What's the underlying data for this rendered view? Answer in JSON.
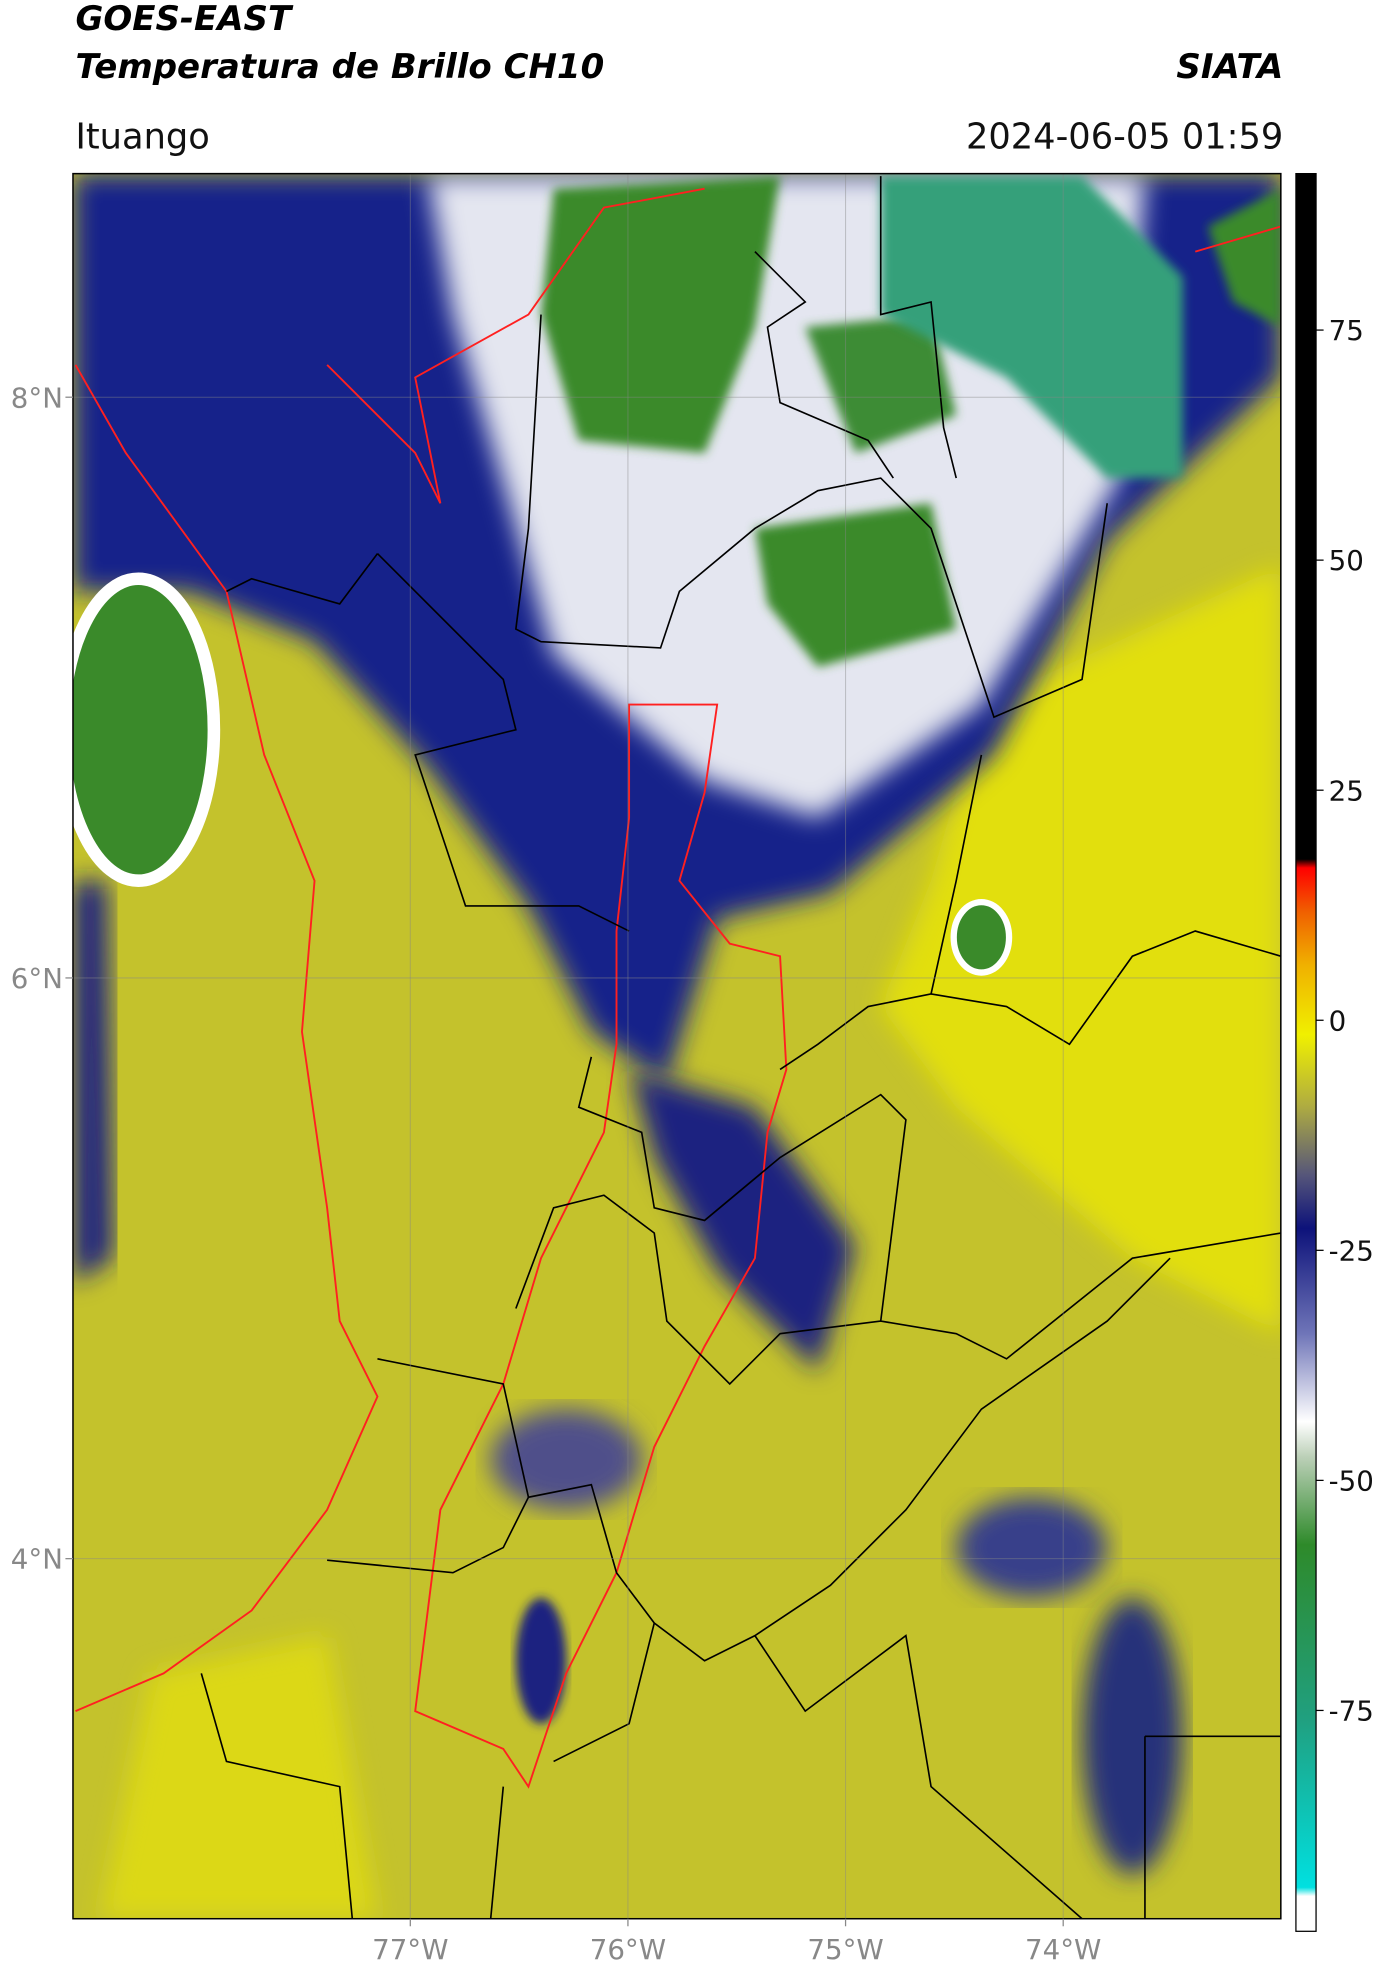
{
  "header": {
    "satellite": "GOES-EAST",
    "product": "Temperatura de Brillo CH10",
    "source": "SIATA",
    "location": "Ituango",
    "datetime": "2024-06-05 01:59"
  },
  "map": {
    "lat_lim": [
      2.76,
      8.77
    ],
    "lon_lim": [
      -78.55,
      -73.0
    ],
    "lat_ticks": [
      {
        "value": 8,
        "label": "8°N"
      },
      {
        "value": 6,
        "label": "6°N"
      },
      {
        "value": 4,
        "label": "4°N"
      }
    ],
    "lon_ticks": [
      {
        "value": -77,
        "label": "77°W"
      },
      {
        "value": -76,
        "label": "76°W"
      },
      {
        "value": -75,
        "label": "75°W"
      },
      {
        "value": -74,
        "label": "74°W"
      }
    ]
  },
  "colorbar": {
    "lim": [
      -99,
      92
    ],
    "ticks": [
      75,
      50,
      25,
      0,
      -25,
      -50,
      -75
    ]
  }
}
